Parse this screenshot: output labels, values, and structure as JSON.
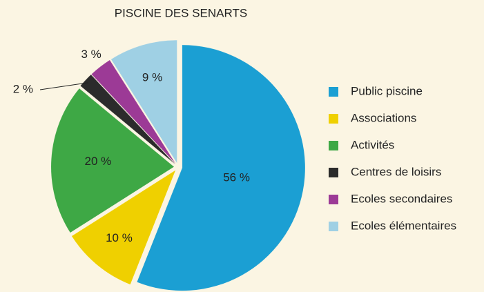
{
  "chart_data": {
    "type": "pie",
    "title": "PISCINE DES SENARTS",
    "categories": [
      "Public piscine",
      "Associations",
      "Activités",
      "Centres de loisirs",
      "Ecoles secondaires",
      "Ecoles élémentaires"
    ],
    "values": [
      56,
      10,
      20,
      2,
      3,
      9
    ],
    "value_labels": [
      "56 %",
      "10 %",
      "20 %",
      "2 %",
      "3 %",
      "9 %"
    ],
    "colors": [
      "#1b9fd3",
      "#efd000",
      "#3ea845",
      "#2b2b2b",
      "#9c3a96",
      "#9fd0e4"
    ],
    "legend": "right"
  }
}
